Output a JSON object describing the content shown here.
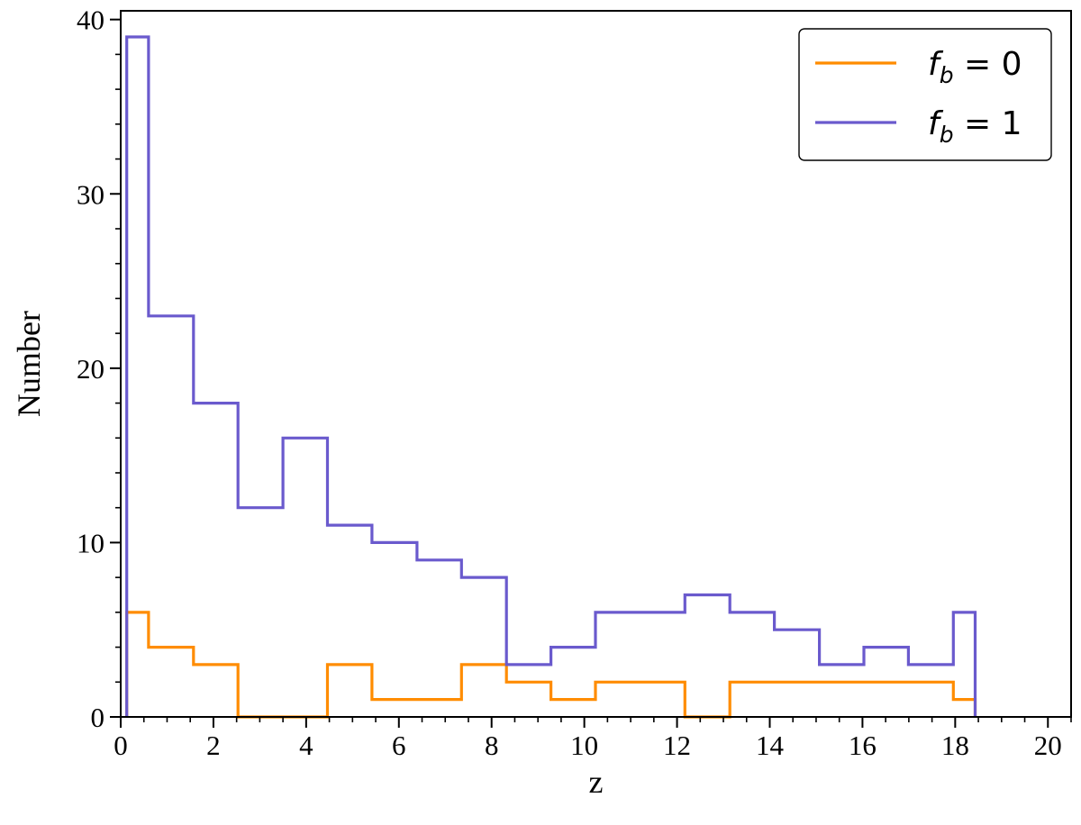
{
  "chart_data": {
    "type": "histogram",
    "xlabel": "z",
    "ylabel": "Number",
    "xlim": [
      0,
      20.5
    ],
    "ylim": [
      0,
      40.5
    ],
    "xticks": [
      0,
      2,
      4,
      6,
      8,
      10,
      12,
      14,
      16,
      18,
      20
    ],
    "yticks": [
      0,
      10,
      20,
      30,
      40
    ],
    "xticklabels": [
      "0",
      "2",
      "4",
      "6",
      "8",
      "10",
      "12",
      "14",
      "16",
      "18",
      "20"
    ],
    "yticklabels": [
      "0",
      "10",
      "20",
      "30",
      "40"
    ],
    "grid": false,
    "legend_position": "top-right",
    "bin_edges": [
      0.13,
      0.6,
      1.57,
      2.53,
      3.5,
      4.46,
      5.42,
      6.39,
      7.35,
      8.32,
      9.28,
      10.24,
      11.21,
      12.17,
      13.14,
      14.1,
      15.07,
      16.03,
      16.99,
      17.96,
      18.43
    ],
    "series": [
      {
        "name": "f_b = 0",
        "legend": {
          "prefix": "f",
          "sub": "b",
          "suffix": " = 0"
        },
        "color": "#FF8C00",
        "counts": [
          6,
          4,
          3,
          0,
          0,
          3,
          1,
          1,
          3,
          2,
          1,
          2,
          2,
          0,
          2,
          2,
          2,
          2,
          2,
          1
        ]
      },
      {
        "name": "f_b = 1",
        "legend": {
          "prefix": "f",
          "sub": "b",
          "suffix": " = 1"
        },
        "color": "#6A5ACD",
        "counts": [
          39,
          23,
          18,
          12,
          16,
          11,
          10,
          9,
          8,
          3,
          4,
          6,
          6,
          7,
          6,
          5,
          3,
          4,
          3,
          6
        ]
      }
    ]
  }
}
